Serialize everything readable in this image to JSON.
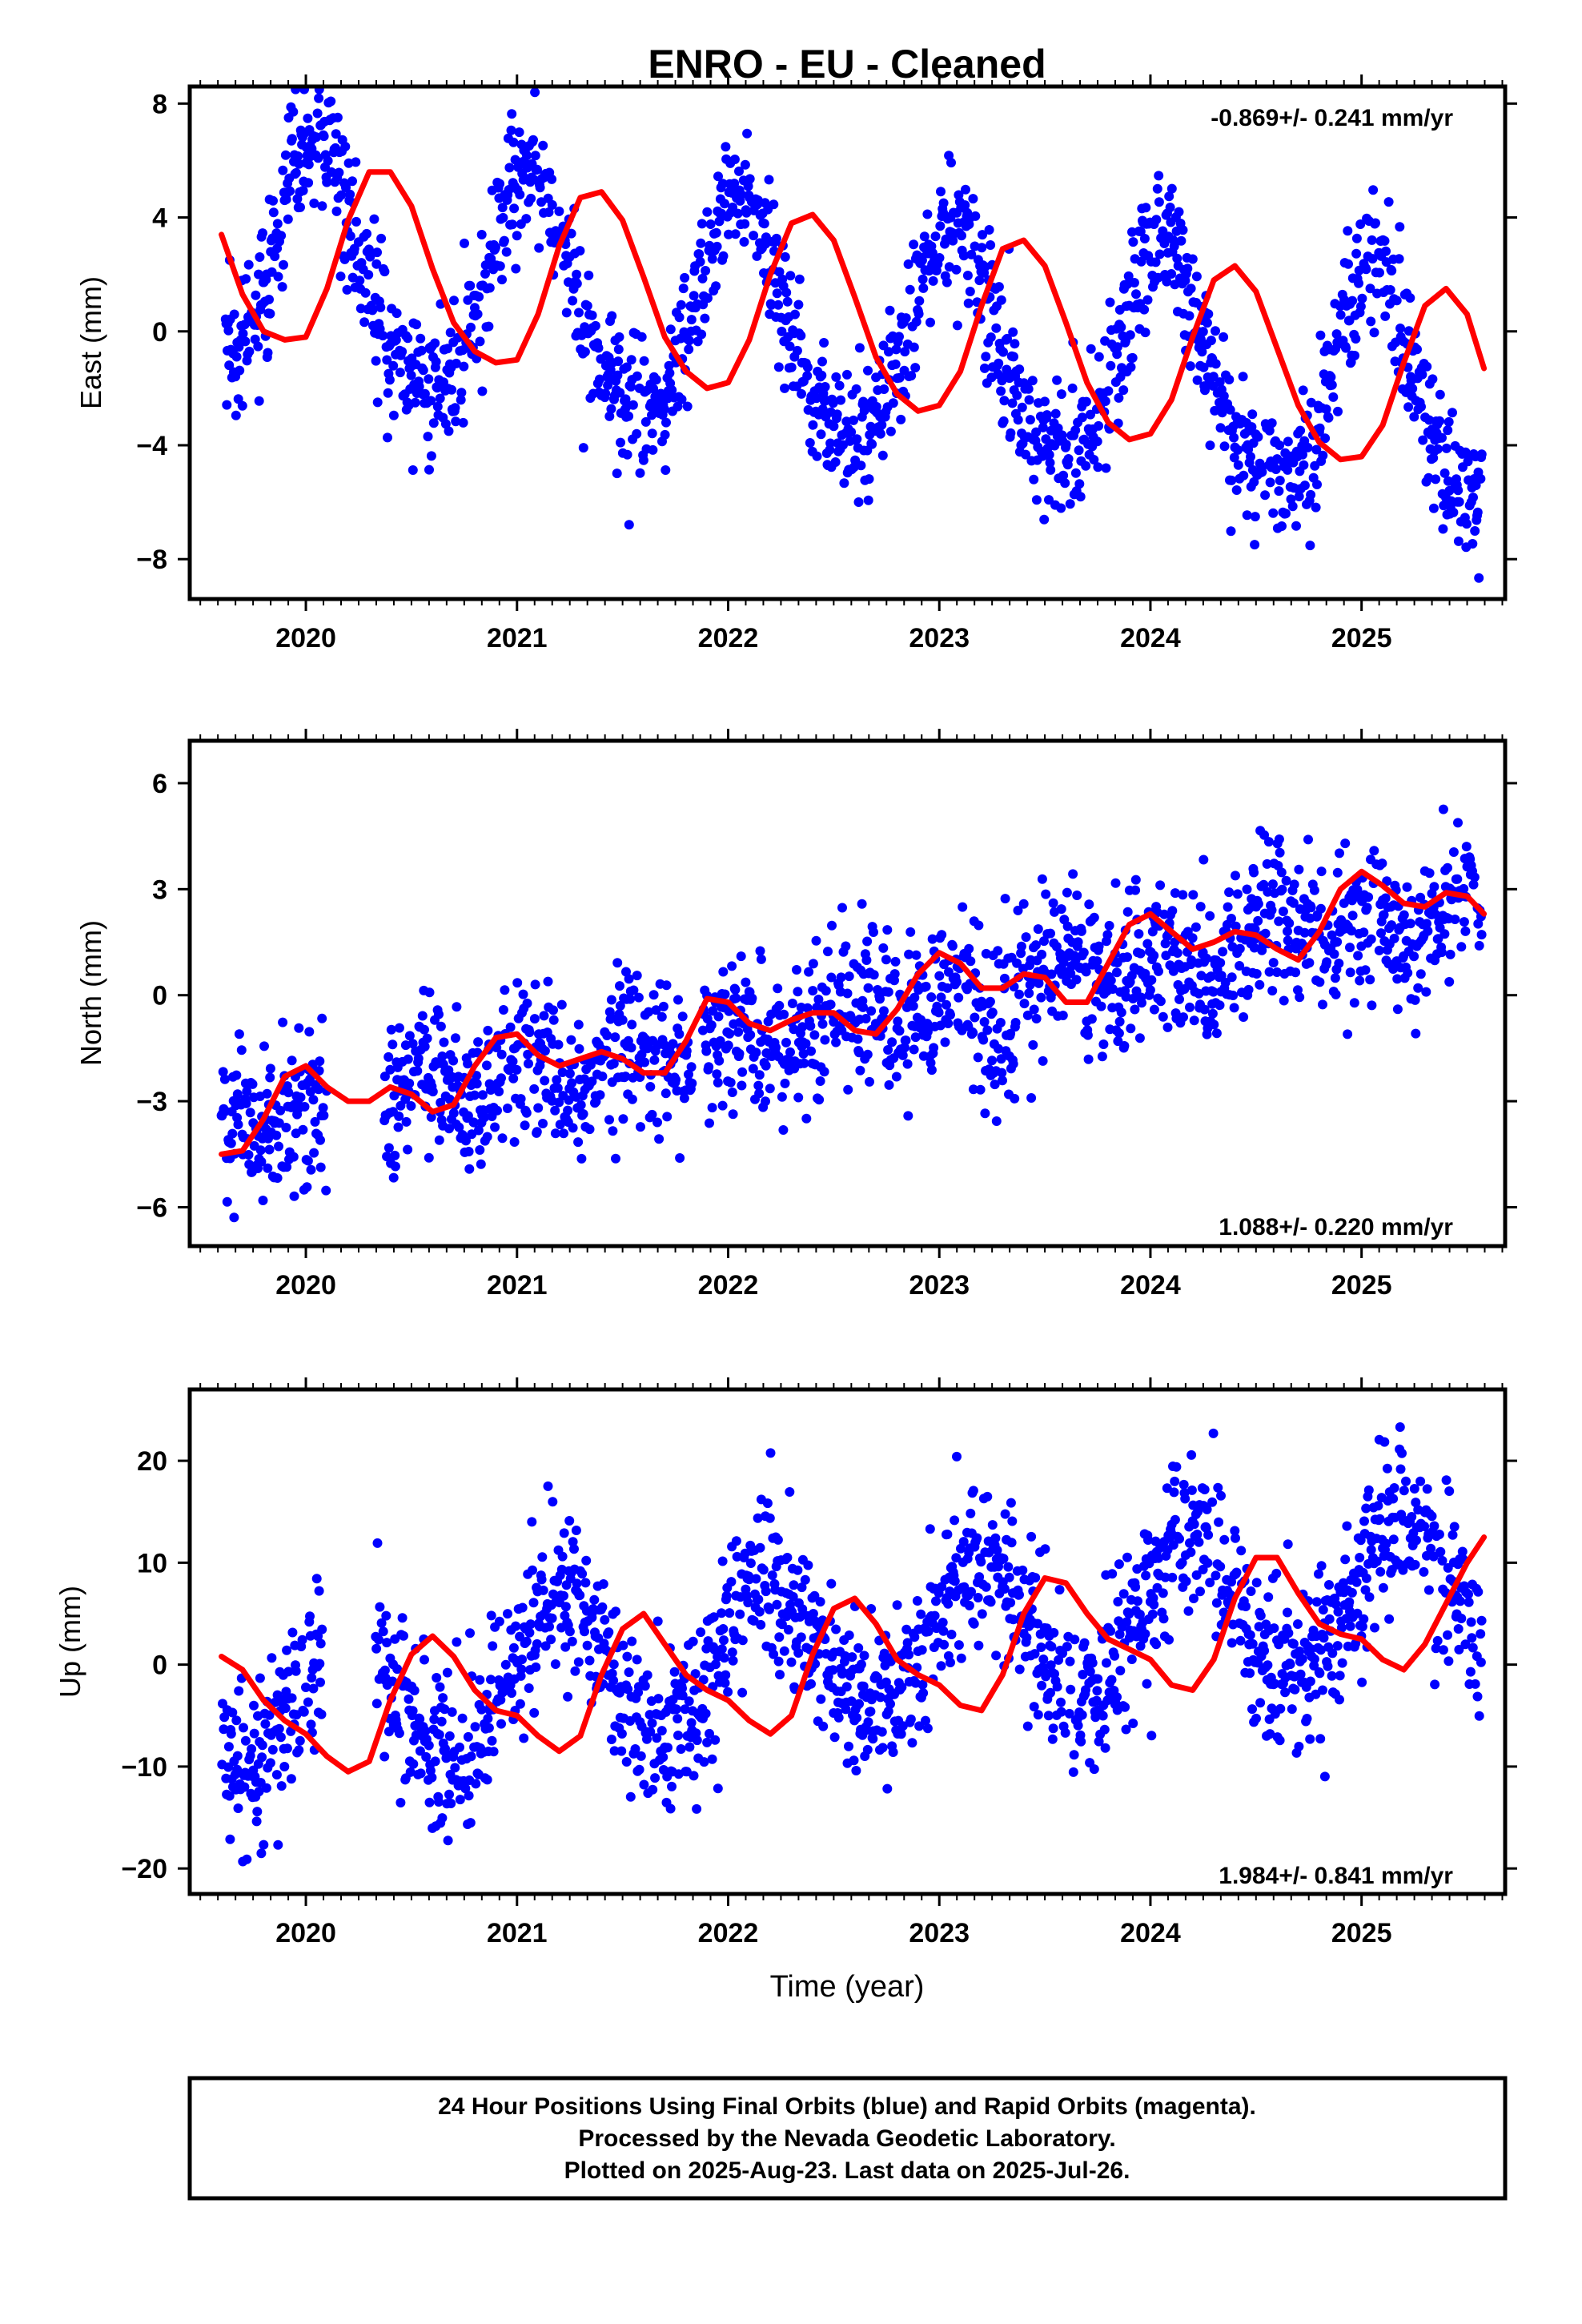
{
  "title": "ENRO  - EU - Cleaned",
  "colors": {
    "points": "#0000ff",
    "fit": "#ff0000",
    "frame": "#000000"
  },
  "chart_data": [
    {
      "type": "scatter",
      "ylabel": "East (mm)",
      "xlabel": "",
      "xlim": [
        2019.45,
        2025.68
      ],
      "ylim": [
        -9.4,
        8.6
      ],
      "xticks": [
        "2020",
        "2021",
        "2022",
        "2023",
        "2024",
        "2025"
      ],
      "yticks": [
        "8",
        "4",
        "0",
        "−4",
        "−8"
      ],
      "ytick_values": [
        8,
        4,
        0,
        -4,
        -8
      ],
      "rate_label": "-0.869+/- 0.241 mm/yr",
      "series": [
        {
          "name": "",
          "role": "daily positions (dots)",
          "model": {
            "start": 2019.62,
            "end": 2025.57,
            "offset": 2.5,
            "trend": -0.869,
            "annual_cos": -3.6,
            "annual_sin": -1.6,
            "semiannual_cos": 0.5,
            "semiannual_sin": 0.3,
            "noise_sd": 1.2
          },
          "gaps": []
        },
        {
          "name": "",
          "role": "smoothed fit (red line)",
          "x": [
            2019.6,
            2019.7,
            2019.8,
            2019.9,
            2020.0,
            2020.1,
            2020.2,
            2020.3,
            2020.4,
            2020.5,
            2020.6,
            2020.7,
            2020.8,
            2020.9,
            2021.0,
            2021.1,
            2021.2,
            2021.3,
            2021.4,
            2021.5,
            2021.6,
            2021.7,
            2021.8,
            2021.9,
            2022.0,
            2022.1,
            2022.2,
            2022.3,
            2022.4,
            2022.5,
            2022.6,
            2022.7,
            2022.8,
            2022.9,
            2023.0,
            2023.1,
            2023.2,
            2023.3,
            2023.4,
            2023.5,
            2023.6,
            2023.7,
            2023.8,
            2023.9,
            2024.0,
            2024.1,
            2024.2,
            2024.3,
            2024.4,
            2024.5,
            2024.6,
            2024.7,
            2024.8,
            2024.9,
            2025.0,
            2025.1,
            2025.2,
            2025.3,
            2025.4,
            2025.5,
            2025.58
          ],
          "y": [
            3.4,
            1.3,
            0.0,
            -0.3,
            -0.2,
            1.5,
            3.9,
            5.6,
            5.6,
            4.4,
            2.2,
            0.3,
            -0.7,
            -1.1,
            -1.0,
            0.6,
            3.0,
            4.7,
            4.9,
            3.9,
            1.9,
            -0.2,
            -1.4,
            -2.0,
            -1.8,
            -0.3,
            2.0,
            3.8,
            4.1,
            3.2,
            1.2,
            -0.9,
            -2.2,
            -2.8,
            -2.6,
            -1.4,
            0.9,
            2.9,
            3.2,
            2.3,
            0.3,
            -1.8,
            -3.2,
            -3.8,
            -3.6,
            -2.4,
            -0.2,
            1.8,
            2.3,
            1.4,
            -0.6,
            -2.6,
            -3.9,
            -4.5,
            -4.4,
            -3.3,
            -1.1,
            0.9,
            1.5,
            0.6,
            -1.3
          ]
        }
      ]
    },
    {
      "type": "scatter",
      "ylabel": "North (mm)",
      "xlabel": "",
      "xlim": [
        2019.45,
        2025.68
      ],
      "ylim": [
        -7.1,
        7.2
      ],
      "xticks": [
        "2020",
        "2021",
        "2022",
        "2023",
        "2024",
        "2025"
      ],
      "yticks": [
        "6",
        "3",
        "0",
        "−3",
        "−6"
      ],
      "ytick_values": [
        6,
        3,
        0,
        -3,
        -6
      ],
      "rate_label": "1.088+/- 0.220 mm/yr",
      "series": [
        {
          "name": "",
          "role": "daily positions (dots)",
          "model": {
            "start": 2019.6,
            "end": 2025.57,
            "offset": -3.9,
            "trend": 1.088,
            "annual_cos": 0.1,
            "annual_sin": 0.3,
            "semiannual_cos": 0.4,
            "semiannual_sin": 0.3,
            "noise_sd": 1.1
          },
          "gaps": [
            [
              2020.1,
              2020.37
            ],
            [
              2021.83,
              2021.88
            ]
          ]
        },
        {
          "name": "",
          "role": "smoothed fit (red line)",
          "x": [
            2019.6,
            2019.7,
            2019.8,
            2019.9,
            2020.0,
            2020.1,
            2020.2,
            2020.3,
            2020.4,
            2020.5,
            2020.6,
            2020.7,
            2020.8,
            2020.9,
            2021.0,
            2021.1,
            2021.2,
            2021.3,
            2021.4,
            2021.5,
            2021.6,
            2021.7,
            2021.8,
            2021.9,
            2022.0,
            2022.1,
            2022.2,
            2022.3,
            2022.4,
            2022.5,
            2022.6,
            2022.7,
            2022.8,
            2022.9,
            2023.0,
            2023.1,
            2023.2,
            2023.3,
            2023.4,
            2023.5,
            2023.6,
            2023.7,
            2023.8,
            2023.9,
            2024.0,
            2024.1,
            2024.2,
            2024.3,
            2024.4,
            2024.5,
            2024.6,
            2024.7,
            2024.8,
            2024.9,
            2025.0,
            2025.1,
            2025.2,
            2025.3,
            2025.4,
            2025.5,
            2025.58
          ],
          "y": [
            -4.5,
            -4.4,
            -3.5,
            -2.3,
            -2.0,
            -2.6,
            -3.0,
            -3.0,
            -2.6,
            -2.8,
            -3.3,
            -3.1,
            -2.0,
            -1.2,
            -1.1,
            -1.7,
            -2.0,
            -1.8,
            -1.6,
            -1.8,
            -2.2,
            -2.2,
            -1.3,
            -0.1,
            -0.2,
            -0.8,
            -1.0,
            -0.7,
            -0.5,
            -0.5,
            -1.0,
            -1.1,
            -0.4,
            0.6,
            1.2,
            0.9,
            0.2,
            0.2,
            0.6,
            0.5,
            -0.2,
            -0.2,
            0.9,
            2.0,
            2.3,
            1.8,
            1.3,
            1.5,
            1.8,
            1.7,
            1.3,
            1.0,
            1.8,
            3.0,
            3.5,
            3.1,
            2.6,
            2.5,
            2.9,
            2.8,
            2.3
          ]
        }
      ]
    },
    {
      "type": "scatter",
      "ylabel": "Up (mm)",
      "xlabel": "Time (year)",
      "xlim": [
        2019.45,
        2025.68
      ],
      "ylim": [
        -22.5,
        27.0
      ],
      "xticks": [
        "2020",
        "2021",
        "2022",
        "2023",
        "2024",
        "2025"
      ],
      "yticks": [
        "20",
        "10",
        "0",
        "−10",
        "−20"
      ],
      "ytick_values": [
        20,
        10,
        0,
        -10,
        -20
      ],
      "rate_label": "1.984+/- 0.841 mm/yr",
      "series": [
        {
          "name": "",
          "role": "daily positions (dots)",
          "model": {
            "start": 2019.6,
            "end": 2025.57,
            "offset": -4.0,
            "trend": 1.984,
            "annual_cos": -2.5,
            "annual_sin": -6.5,
            "semiannual_cos": -0.5,
            "semiannual_sin": 0.5,
            "noise_sd": 4.2
          },
          "gaps": [
            [
              2020.08,
              2020.33
            ]
          ]
        },
        {
          "name": "",
          "role": "smoothed fit (red line)",
          "x": [
            2019.6,
            2019.7,
            2019.8,
            2019.9,
            2020.0,
            2020.1,
            2020.2,
            2020.3,
            2020.4,
            2020.5,
            2020.6,
            2020.7,
            2020.8,
            2020.9,
            2021.0,
            2021.1,
            2021.2,
            2021.3,
            2021.4,
            2021.5,
            2021.6,
            2021.7,
            2021.8,
            2021.9,
            2022.0,
            2022.1,
            2022.2,
            2022.3,
            2022.4,
            2022.5,
            2022.6,
            2022.7,
            2022.8,
            2022.9,
            2023.0,
            2023.1,
            2023.2,
            2023.3,
            2023.4,
            2023.5,
            2023.6,
            2023.7,
            2023.8,
            2023.9,
            2024.0,
            2024.1,
            2024.2,
            2024.3,
            2024.4,
            2024.5,
            2024.6,
            2024.7,
            2024.8,
            2024.9,
            2025.0,
            2025.1,
            2025.2,
            2025.3,
            2025.4,
            2025.5,
            2025.58
          ],
          "y": [
            0.8,
            -0.5,
            -3.5,
            -5.5,
            -6.8,
            -9.0,
            -10.5,
            -9.5,
            -3.5,
            1.0,
            2.8,
            0.8,
            -2.5,
            -4.5,
            -5.0,
            -7.0,
            -8.5,
            -7.0,
            -1.0,
            3.5,
            5.0,
            2.0,
            -1.0,
            -2.5,
            -3.5,
            -5.5,
            -6.8,
            -5.0,
            1.0,
            5.5,
            6.5,
            4.0,
            0.5,
            -1.0,
            -2.0,
            -4.0,
            -4.5,
            -1.0,
            5.0,
            8.5,
            8.0,
            5.0,
            2.5,
            1.5,
            0.5,
            -2.0,
            -2.5,
            0.5,
            6.5,
            10.5,
            10.5,
            7.0,
            4.0,
            3.0,
            2.5,
            0.5,
            -0.5,
            2.0,
            6.0,
            10.0,
            12.5
          ]
        }
      ]
    }
  ],
  "footer": {
    "line1": "24 Hour Positions Using Final Orbits (blue) and Rapid Orbits (magenta).",
    "line2": "Processed by the Nevada Geodetic Laboratory.",
    "line3": "Plotted on 2025-Aug-23. Last data on 2025-Jul-26."
  }
}
